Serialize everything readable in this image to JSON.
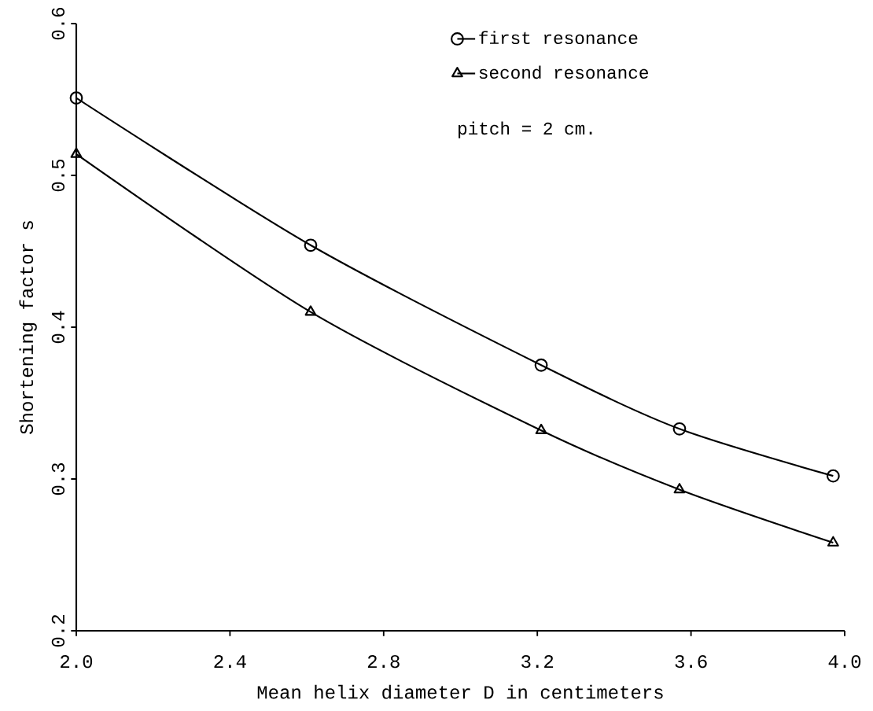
{
  "chart_data": {
    "type": "line",
    "xlabel": "Mean helix diameter D in centimeters",
    "ylabel": "Shortening factor s",
    "xlim": [
      2.0,
      4.0
    ],
    "ylim": [
      0.2,
      0.6
    ],
    "xticks": [
      {
        "value": 2.0,
        "label": "2.0"
      },
      2.4,
      2.8,
      3.2,
      3.6,
      {
        "value": 4.0,
        "label": "4.0"
      }
    ],
    "yticks": [
      0.2,
      0.3,
      0.4,
      0.5,
      0.6
    ],
    "x": [
      2.0,
      2.61,
      3.21,
      3.57,
      3.97
    ],
    "series": [
      {
        "name": "first resonance",
        "color": "#000000",
        "marker": "circle",
        "values": [
          0.551,
          0.454,
          0.375,
          0.333,
          0.302
        ]
      },
      {
        "name": "second resonance",
        "color": "#000000",
        "marker": "triangle",
        "values": [
          0.514,
          0.41,
          0.332,
          0.293,
          0.258
        ]
      }
    ],
    "annotations": [
      "pitch = 2 cm."
    ],
    "legend": "top right",
    "grid": false
  }
}
